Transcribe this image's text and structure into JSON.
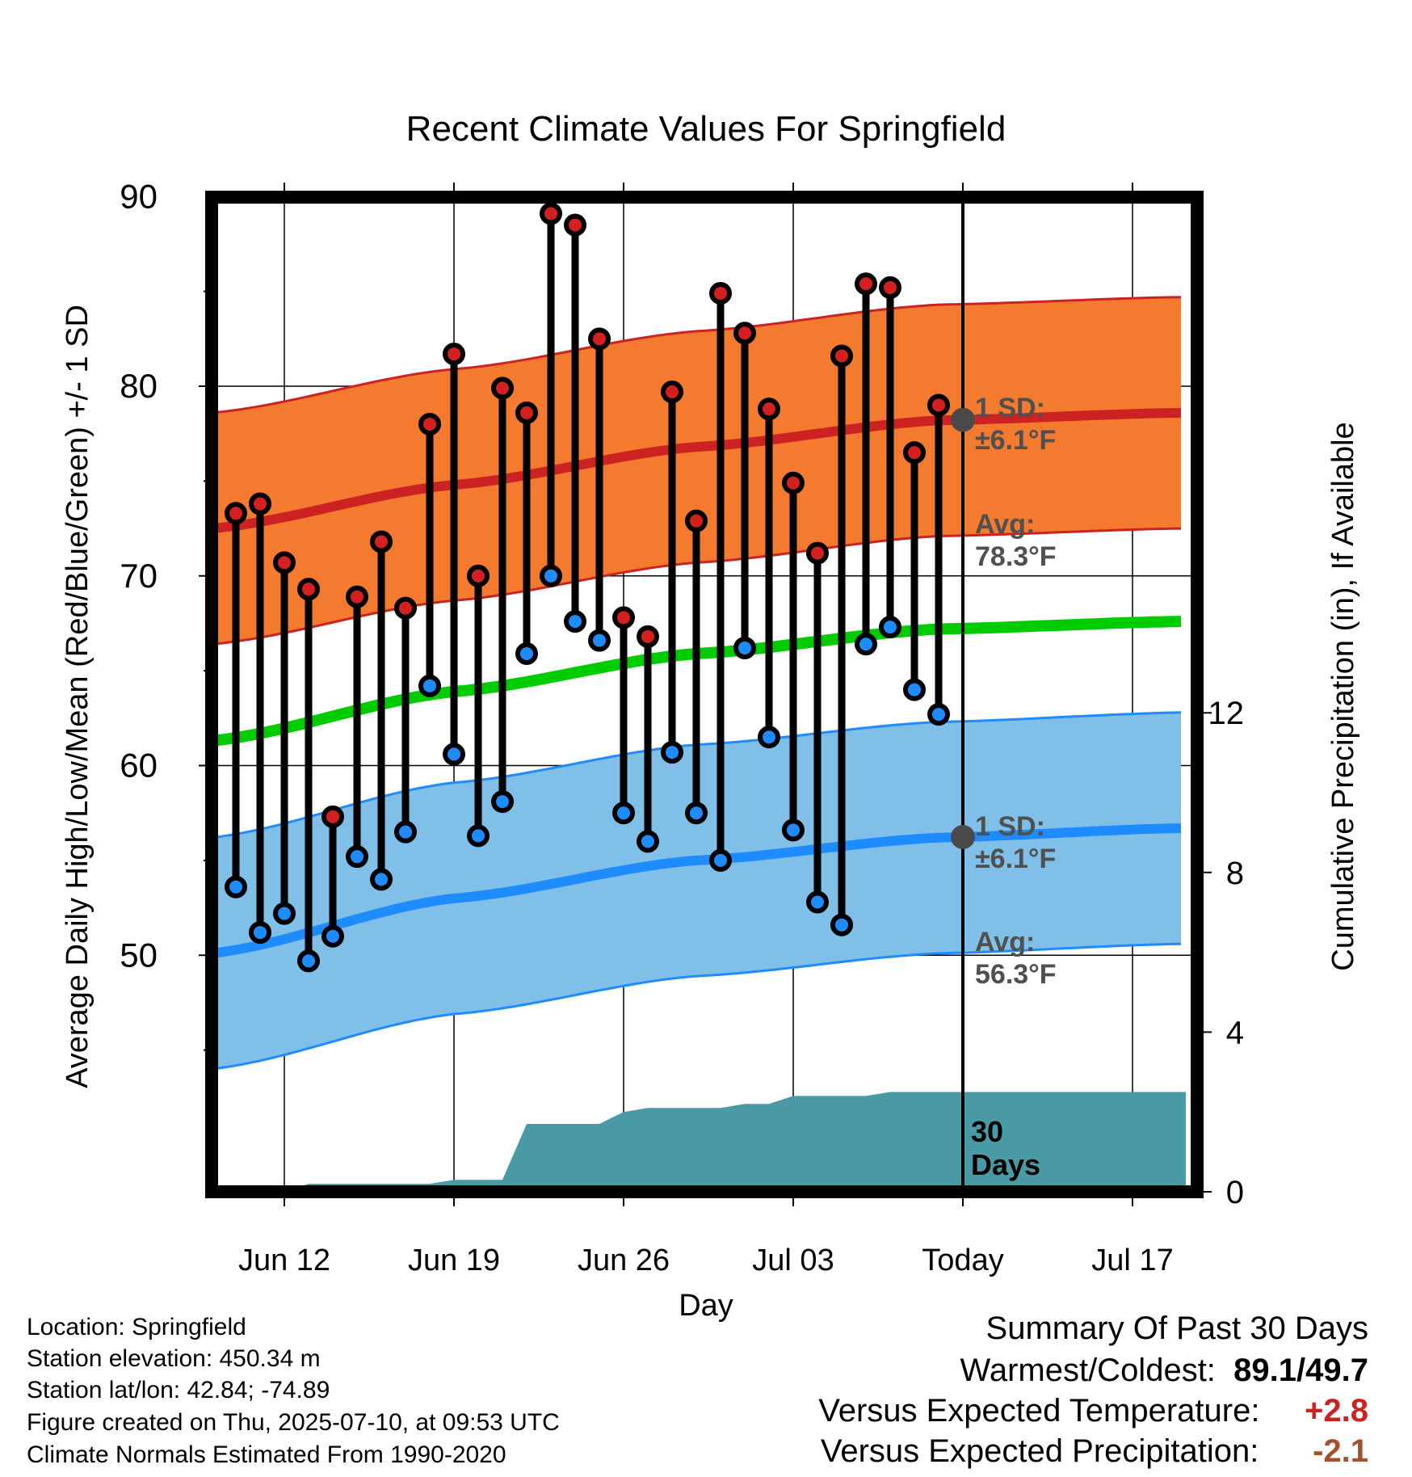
{
  "chart_data": {
    "type": "line",
    "title": "Recent Climate Values For Springfield",
    "xlabel": "Day",
    "ylabel": "Average Daily High/Low/Mean (Red/Blue/Green) +/- 1 SD",
    "y2label": "Cumulative Precipitation (in), If Available",
    "ylim": [
      42,
      95
    ],
    "y2lim": [
      0,
      12
    ],
    "yticks": [
      "50",
      "60",
      "70",
      "80",
      "90"
    ],
    "y2ticks": [
      "0",
      "4",
      "8",
      "12"
    ],
    "xticks": [
      "Jun 12",
      "Jun 19",
      "Jun 26",
      "Jul 03",
      "Today",
      "Jul 17"
    ],
    "xtick_days": [
      3,
      10,
      17,
      24,
      31,
      38
    ],
    "xlim": [
      0,
      41
    ],
    "today_day": 31,
    "grid": true,
    "days": [
      1,
      2,
      3,
      4,
      5,
      6,
      7,
      8,
      9,
      10,
      11,
      12,
      13,
      14,
      15,
      16,
      17,
      18,
      19,
      20,
      21,
      22,
      23,
      24,
      25,
      26,
      27,
      28,
      29,
      30
    ],
    "highs": [
      73.3,
      73.8,
      70.7,
      69.3,
      57.3,
      68.9,
      71.8,
      68.3,
      78.0,
      81.7,
      70.0,
      79.9,
      78.6,
      89.1,
      88.5,
      82.5,
      67.8,
      66.8,
      79.7,
      72.9,
      84.9,
      82.8,
      78.8,
      74.9,
      71.2,
      81.6,
      85.4,
      85.2,
      76.5,
      79.0
    ],
    "lows": [
      53.6,
      51.2,
      52.2,
      49.7,
      51.0,
      55.2,
      54.0,
      56.5,
      64.2,
      60.6,
      56.3,
      58.1,
      65.9,
      70.0,
      67.6,
      66.6,
      57.5,
      56.0,
      60.7,
      57.5,
      55.0,
      66.2,
      61.5,
      56.6,
      52.8,
      51.6,
      66.4,
      67.3,
      64.0,
      62.7
    ],
    "normal_days": [
      0,
      10,
      20,
      30,
      40
    ],
    "normal_high": [
      72.5,
      74.8,
      76.8,
      78.2,
      78.6
    ],
    "normal_low": [
      50.1,
      53.0,
      55.0,
      56.2,
      56.7
    ],
    "normal_mean": [
      61.3,
      63.9,
      65.9,
      67.2,
      67.6
    ],
    "sd_high": 6.1,
    "sd_low": 6.1,
    "precip_days": [
      0,
      3,
      4,
      5,
      6,
      7,
      8,
      9,
      10,
      11,
      12,
      13,
      14,
      15,
      16,
      17,
      18,
      19,
      20,
      21,
      22,
      23,
      24,
      25,
      26,
      27,
      28,
      29,
      30,
      31,
      40
    ],
    "precip_cumulative": [
      0,
      0,
      0.2,
      0.2,
      0.2,
      0.2,
      0.2,
      0.2,
      0.3,
      0.3,
      0.3,
      1.7,
      1.7,
      1.7,
      1.7,
      2.0,
      2.1,
      2.1,
      2.1,
      2.1,
      2.2,
      2.2,
      2.4,
      2.4,
      2.4,
      2.4,
      2.5,
      2.5,
      2.5,
      2.5,
      2.5
    ],
    "annotations": {
      "high_sd_label": "1 SD:",
      "high_sd_value": "±6.1°F",
      "high_avg_label": "Avg:",
      "high_avg_value": "78.3°F",
      "low_sd_label": "1 SD:",
      "low_sd_value": "±6.1°F",
      "low_avg_label": "Avg:",
      "low_avg_value": "56.3°F",
      "precip_label_1": "30",
      "precip_label_2": "Days"
    },
    "colors": {
      "high_band": "#f47a30",
      "high_line": "#cc2222",
      "low_band": "#80c0e8",
      "low_line": "#1e8cff",
      "mean_line": "#00cc00",
      "precip": "#4a9aa5",
      "high_dot": "#d42020",
      "low_dot": "#1e8cff",
      "annotation": "#505050"
    }
  },
  "info": {
    "location": "Location: Springfield",
    "elevation": "Station elevation: 450.34 m",
    "latlon": "Station lat/lon: 42.84; -74.89",
    "created": "Figure created on Thu, 2025-07-10, at 09:53 UTC",
    "normals": "Climate Normals Estimated From 1990-2020"
  },
  "summary": {
    "title": "Summary Of Past 30 Days",
    "warm_cold_label": "Warmest/Coldest:",
    "warmest": "89.1",
    "coldest": "49.7",
    "temp_label": "Versus Expected Temperature:",
    "temp_value": "+2.8",
    "temp_color": "#cc2222",
    "precip_label": "Versus Expected Precipitation:",
    "precip_value": "-2.1",
    "precip_color": "#a0522d"
  }
}
